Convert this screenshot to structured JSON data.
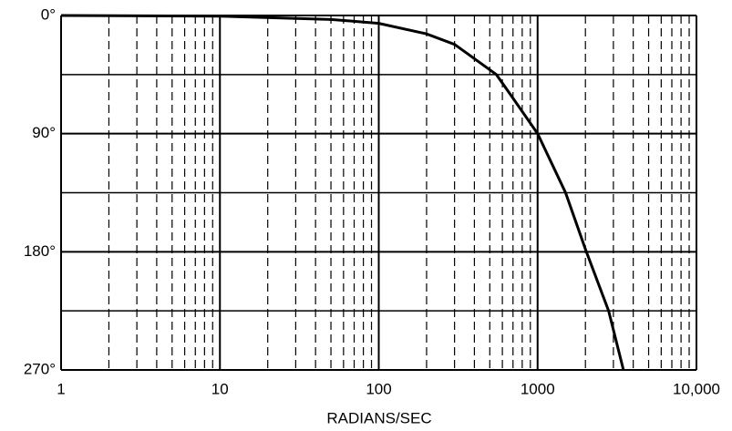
{
  "chart_data": {
    "type": "line",
    "xlabel": "RADIANS/SEC",
    "xscale": "log",
    "xlim": [
      1,
      10000
    ],
    "xticks": [
      1,
      10,
      100,
      1000,
      {
        "value": 10000,
        "label": "10,000"
      }
    ],
    "ylim": [
      270,
      0
    ],
    "yinverted": true,
    "yticks": [
      {
        "value": 0,
        "label": "0°"
      },
      {
        "value": 90,
        "label": "90°"
      },
      {
        "value": 180,
        "label": "180°"
      },
      {
        "value": 270,
        "label": "270°"
      }
    ],
    "yminor": [
      45,
      135,
      225
    ],
    "grid": true,
    "color": "#000000",
    "x": [
      1,
      10,
      50,
      100,
      200,
      300,
      550,
      700,
      1000,
      1500,
      2000,
      2800,
      3470
    ],
    "values": [
      0,
      0.5,
      3,
      6,
      14,
      22,
      45,
      63,
      90,
      135,
      178,
      225,
      270
    ]
  }
}
